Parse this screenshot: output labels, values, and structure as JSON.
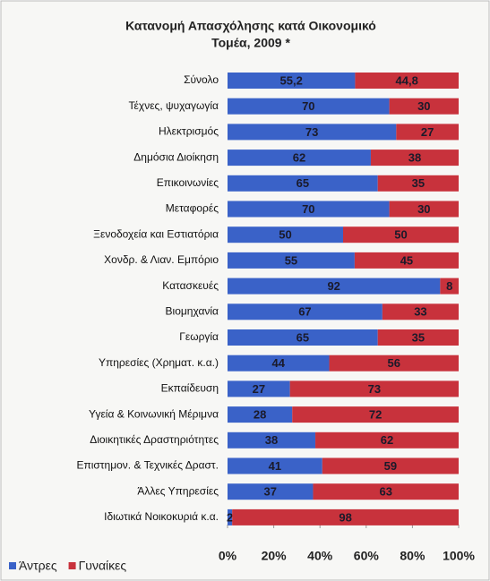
{
  "chart_data": {
    "type": "stacked_barh",
    "title": [
      "Κατανομή Απασχόλησης κατά Οικονομικό",
      "Τομέα, 2009 *"
    ],
    "categories": [
      "Σύνολο",
      "Τέχνες, ψυχαγωγία",
      "Ηλεκτρισμός",
      "Δημόσια Διοίκηση",
      "Επικοινωνίες",
      "Μεταφορές",
      "Ξενοδοχεία και Εστιατόρια",
      "Χονδρ. & Λιαν. Εμπόριο",
      "Κατασκευές",
      "Βιομηχανία",
      "Γεωργία",
      "Υπηρεσίες (Χρηματ. κ.α.)",
      "Εκπαίδευση",
      "Υγεία & Κοινωνική Μέριμνα",
      "Διοικητικές Δραστηριότητες",
      "Επιστημον. & Τεχνικές Δραστ.",
      "Άλλες Υπηρεσίες",
      "Ιδιωτικά Νοικοκυριά κ.α."
    ],
    "series": [
      {
        "name": "Άντρες",
        "color": "#3a62c8",
        "values": [
          55.2,
          70,
          73,
          62,
          65,
          70,
          50,
          55,
          92,
          67,
          65,
          44,
          27,
          28,
          38,
          41,
          37,
          2
        ],
        "value_labels": [
          "55,2",
          "70",
          "73",
          "62",
          "65",
          "70",
          "50",
          "55",
          "92",
          "67",
          "65",
          "44",
          "27",
          "28",
          "38",
          "41",
          "37",
          "2"
        ]
      },
      {
        "name": "Γυναίκες",
        "color": "#c8323c",
        "values": [
          44.8,
          30,
          27,
          38,
          35,
          30,
          50,
          45,
          8,
          33,
          35,
          56,
          73,
          72,
          62,
          59,
          63,
          98
        ],
        "value_labels": [
          "44,8",
          "30",
          "27",
          "38",
          "35",
          "30",
          "50",
          "45",
          "8",
          "33",
          "35",
          "56",
          "73",
          "72",
          "62",
          "59",
          "63",
          "98"
        ]
      }
    ],
    "xlim": [
      0,
      100
    ],
    "xticks": [
      {
        "value": 0,
        "label": "0%"
      },
      {
        "value": 20,
        "label": "20%"
      },
      {
        "value": 40,
        "label": "40%"
      },
      {
        "value": 60,
        "label": "60%"
      },
      {
        "value": 80,
        "label": "80%"
      },
      {
        "value": 100,
        "label": "100%"
      }
    ],
    "legend": "bottom-left"
  }
}
